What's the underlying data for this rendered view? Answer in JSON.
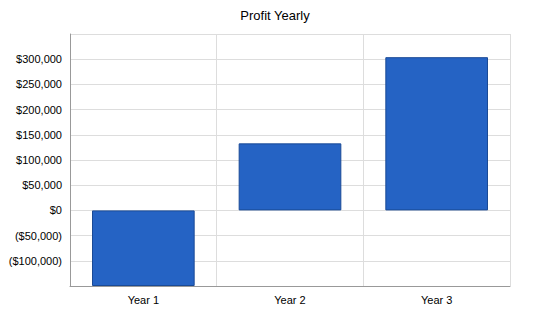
{
  "chart_data": {
    "type": "bar",
    "title": "Profit Yearly",
    "categories": [
      "Year 1",
      "Year 2",
      "Year 3"
    ],
    "values": [
      -150000,
      133000,
      304000
    ],
    "color": "#2563c4",
    "ylim": [
      -150000,
      350000
    ],
    "yticks": [
      {
        "value": -100000,
        "label": "($100,000)"
      },
      {
        "value": -50000,
        "label": "($50,000)"
      },
      {
        "value": 0,
        "label": "$0"
      },
      {
        "value": 50000,
        "label": "$50,000"
      },
      {
        "value": 100000,
        "label": "$100,000"
      },
      {
        "value": 150000,
        "label": "$150,000"
      },
      {
        "value": 200000,
        "label": "$200,000"
      },
      {
        "value": 250000,
        "label": "$250,000"
      },
      {
        "value": 300000,
        "label": "$300,000"
      }
    ],
    "grid": true
  }
}
